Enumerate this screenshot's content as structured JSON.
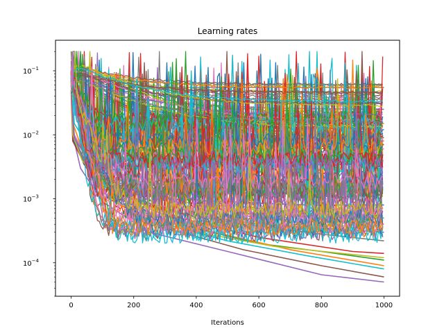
{
  "chart_data": {
    "type": "line",
    "title": "Learning rates",
    "xlabel": "Iterations",
    "ylabel": "",
    "xlim": [
      -50,
      1050
    ],
    "ylim": [
      3e-05,
      0.3
    ],
    "yscale": "log",
    "x_ticks": [
      {
        "value": 0,
        "label": "0"
      },
      {
        "value": 200,
        "label": "200"
      },
      {
        "value": 400,
        "label": "400"
      },
      {
        "value": 600,
        "label": "600"
      },
      {
        "value": 800,
        "label": "800"
      },
      {
        "value": 1000,
        "label": "1000"
      }
    ],
    "y_ticks": [
      {
        "value": 0.0001,
        "base": "10",
        "exp": "−4"
      },
      {
        "value": 0.001,
        "base": "10",
        "exp": "−3"
      },
      {
        "value": 0.01,
        "base": "10",
        "exp": "−2"
      },
      {
        "value": 0.1,
        "base": "10",
        "exp": "−1"
      }
    ],
    "grid": false,
    "legend": "none",
    "palette": [
      "#1f77b4",
      "#ff7f0e",
      "#2ca02c",
      "#d62728",
      "#9467bd",
      "#8c564b",
      "#e377c2",
      "#7f7f7f",
      "#bcbd22",
      "#17becf"
    ],
    "series": [
      {
        "x": [
          0,
          5,
          60,
          150,
          300,
          500,
          700,
          1000
        ],
        "y": [
          0.09,
          0.06,
          0.055,
          0.055,
          0.055,
          0.055,
          0.055,
          0.055
        ],
        "color": "#7f7f7f"
      },
      {
        "x": [
          0,
          15,
          80,
          150,
          300,
          500,
          650,
          1000
        ],
        "y": [
          0.08,
          0.075,
          0.06,
          0.04,
          0.032,
          0.028,
          0.026,
          0.025
        ],
        "color": "#9467bd"
      },
      {
        "x": [
          0,
          20,
          100,
          200,
          350,
          550,
          800,
          1000
        ],
        "y": [
          0.085,
          0.08,
          0.05,
          0.03,
          0.025,
          0.022,
          0.018,
          0.015
        ],
        "color": "#2ca02c"
      },
      {
        "x": [
          0,
          20,
          100,
          200,
          400,
          600,
          800,
          1000
        ],
        "y": [
          0.08,
          0.075,
          0.045,
          0.025,
          0.02,
          0.016,
          0.014,
          0.012
        ],
        "color": "#1f77b4"
      },
      {
        "x": [
          0,
          15,
          110,
          220,
          400,
          600,
          800,
          1000
        ],
        "y": [
          0.07,
          0.07,
          0.04,
          0.022,
          0.016,
          0.012,
          0.01,
          0.009
        ],
        "color": "#8c564b"
      },
      {
        "x": [
          0,
          10,
          150,
          250,
          450,
          650,
          850,
          1000
        ],
        "y": [
          0.09,
          0.08,
          0.03,
          0.018,
          0.012,
          0.009,
          0.008,
          0.007
        ],
        "color": "#d62728"
      },
      {
        "x": [
          0,
          20,
          130,
          230,
          420,
          600,
          850,
          1000
        ],
        "y": [
          0.075,
          0.07,
          0.035,
          0.02,
          0.014,
          0.011,
          0.009,
          0.008
        ],
        "color": "#ff7f0e"
      },
      {
        "x": [
          0,
          20,
          120,
          260,
          420,
          600,
          850,
          1000
        ],
        "y": [
          0.06,
          0.055,
          0.03,
          0.016,
          0.011,
          0.009,
          0.007,
          0.006
        ],
        "color": "#e377c2"
      },
      {
        "x": [
          0,
          15,
          80,
          200,
          400,
          600,
          800,
          1000
        ],
        "y": [
          0.08,
          0.07,
          0.045,
          0.028,
          0.02,
          0.017,
          0.016,
          0.015
        ],
        "color": "#bcbd22"
      },
      {
        "x": [
          0,
          20,
          90,
          180,
          350,
          550,
          780,
          1000
        ],
        "y": [
          0.07,
          0.06,
          0.04,
          0.024,
          0.019,
          0.016,
          0.013,
          0.012
        ],
        "color": "#17becf"
      },
      {
        "x": [
          0,
          5,
          30,
          100,
          250,
          500,
          800,
          1000
        ],
        "y": [
          0.1,
          0.01,
          0.003,
          0.0009,
          0.0003,
          0.00015,
          6.5e-05,
          5e-05
        ],
        "color": "#9467bd"
      },
      {
        "x": [
          0,
          5,
          40,
          120,
          300,
          550,
          800,
          1000
        ],
        "y": [
          0.09,
          0.012,
          0.0035,
          0.001,
          0.00035,
          0.00016,
          9e-05,
          6e-05
        ],
        "color": "#8c564b"
      },
      {
        "x": [
          0,
          5,
          40,
          130,
          300,
          500,
          750,
          1000
        ],
        "y": [
          0.08,
          0.011,
          0.004,
          0.0012,
          0.0004,
          0.00022,
          0.00013,
          8e-05
        ],
        "color": "#17becf"
      },
      {
        "x": [
          0,
          8,
          50,
          150,
          300,
          600,
          800,
          1000
        ],
        "y": [
          0.07,
          0.009,
          0.0035,
          0.0011,
          0.00045,
          0.0002,
          0.00015,
          0.00011
        ],
        "color": "#2ca02c"
      },
      {
        "x": [
          0,
          6,
          40,
          120,
          250,
          400,
          700,
          1000
        ],
        "y": [
          0.1,
          0.015,
          0.005,
          0.0018,
          0.0007,
          0.00035,
          0.00016,
          9e-05
        ],
        "color": "#ff7f0e"
      },
      {
        "x": [
          0,
          5,
          50,
          150,
          350,
          600,
          900,
          1000
        ],
        "y": [
          0.05,
          0.008,
          0.003,
          0.0012,
          0.0005,
          0.00025,
          0.00015,
          0.00014
        ],
        "color": "#d62728"
      },
      {
        "x": [
          0,
          10,
          60,
          200,
          400,
          600,
          800,
          1000
        ],
        "y": [
          0.06,
          0.01,
          0.0035,
          0.0015,
          0.0008,
          0.0006,
          0.0005,
          0.0004
        ],
        "color": "#e377c2"
      },
      {
        "x": [
          0,
          8,
          60,
          150,
          300,
          500,
          750,
          1000
        ],
        "y": [
          0.08,
          0.008,
          0.0025,
          0.0013,
          0.001,
          0.0009,
          0.0008,
          0.0008
        ],
        "color": "#1f77b4"
      },
      {
        "x": [
          0,
          5,
          35,
          110,
          250,
          400,
          650,
          1000
        ],
        "y": [
          0.09,
          0.01,
          0.004,
          0.0014,
          0.0006,
          0.0003,
          0.00018,
          0.00012
        ],
        "color": "#bcbd22"
      },
      {
        "x": [
          0,
          10,
          70,
          180,
          350,
          550,
          800,
          1000
        ],
        "y": [
          0.07,
          0.009,
          0.003,
          0.0011,
          0.0006,
          0.0004,
          0.00028,
          0.00022
        ],
        "color": "#7f7f7f"
      },
      {
        "x": [
          0,
          8,
          40,
          100,
          200,
          350,
          600,
          1000
        ],
        "y": [
          0.06,
          0.01,
          0.004,
          0.002,
          0.001,
          0.0006,
          0.0004,
          0.0003
        ],
        "color": "#9467bd"
      },
      {
        "x": [
          0,
          10,
          60,
          150,
          300,
          500,
          750,
          1000
        ],
        "y": [
          0.08,
          0.015,
          0.006,
          0.0025,
          0.0012,
          0.0008,
          0.0006,
          0.0005
        ],
        "color": "#17becf"
      }
    ]
  },
  "noise": {
    "count": 110,
    "seed": 20240501
  }
}
